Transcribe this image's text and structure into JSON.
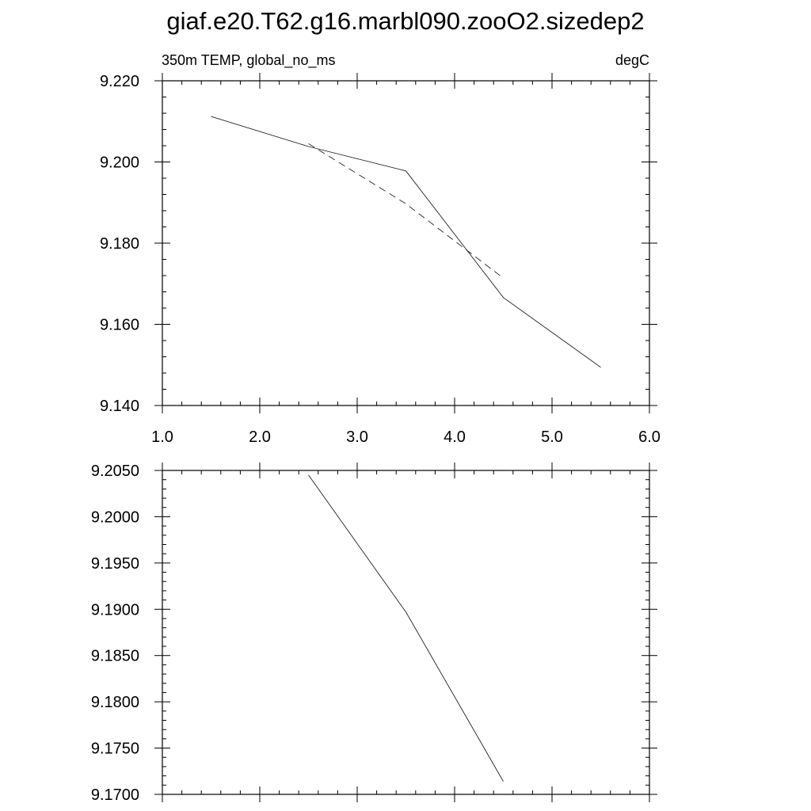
{
  "title": "giaf.e20.T62.g16.marbl090.zooO2.sizedep2",
  "chart_data": [
    {
      "type": "line",
      "title": "350m TEMP, global_no_ms",
      "units": "degC",
      "xlim": [
        1.0,
        6.0
      ],
      "ylim": [
        9.14,
        9.22
      ],
      "x_ticks": [
        "1.0",
        "2.0",
        "3.0",
        "4.0",
        "5.0",
        "6.0"
      ],
      "y_ticks": [
        "9.140",
        "9.160",
        "9.180",
        "9.200",
        "9.220"
      ],
      "series": [
        {
          "style": "solid",
          "x": [
            1.5,
            2.5,
            3.5,
            4.5,
            5.5
          ],
          "y": [
            9.2112,
            9.2038,
            9.1978,
            9.1666,
            9.1494
          ]
        },
        {
          "style": "dashed",
          "x": [
            2.5,
            3.5,
            4.5
          ],
          "y": [
            9.2045,
            9.1897,
            9.1714
          ]
        }
      ]
    },
    {
      "type": "line",
      "ylim": [
        9.17,
        9.205
      ],
      "y_ticks": [
        "9.1700",
        "9.1750",
        "9.1800",
        "9.1850",
        "9.1900",
        "9.1950",
        "9.2000",
        "9.2050"
      ],
      "series": [
        {
          "style": "solid",
          "x": [
            2.5,
            3.5,
            4.5
          ],
          "y": [
            9.2045,
            9.1897,
            9.1714
          ]
        }
      ]
    }
  ]
}
